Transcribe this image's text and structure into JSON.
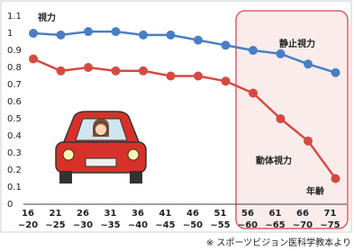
{
  "chart_data": {
    "type": "line",
    "y_label": "視力",
    "x_label": "年齢",
    "source": "※ スポーツビジョン医科学教本より",
    "categories": [
      "16\n~20",
      "21\n~25",
      "26\n~30",
      "31\n~35",
      "36\n~40",
      "41\n~45",
      "46\n~50",
      "51\n~55",
      "56\n~60",
      "61\n~65",
      "66\n~70",
      "71\n~75"
    ],
    "series": [
      {
        "name": "静止視力",
        "color": "#4a7ec4",
        "values": [
          1.0,
          0.99,
          1.01,
          1.01,
          0.99,
          0.99,
          0.96,
          0.93,
          0.9,
          0.88,
          0.82,
          0.77
        ]
      },
      {
        "name": "動体視力",
        "color": "#d44a42",
        "values": [
          0.85,
          0.78,
          0.8,
          0.78,
          0.78,
          0.75,
          0.75,
          0.72,
          0.65,
          0.5,
          0.37,
          0.15
        ]
      }
    ],
    "ylim": [
      0,
      1.1
    ],
    "yticks": [
      0,
      0.1,
      0.2,
      0.3,
      0.4,
      0.5,
      0.6,
      0.7,
      0.8,
      0.9,
      1,
      1.1
    ],
    "grid": false
  }
}
